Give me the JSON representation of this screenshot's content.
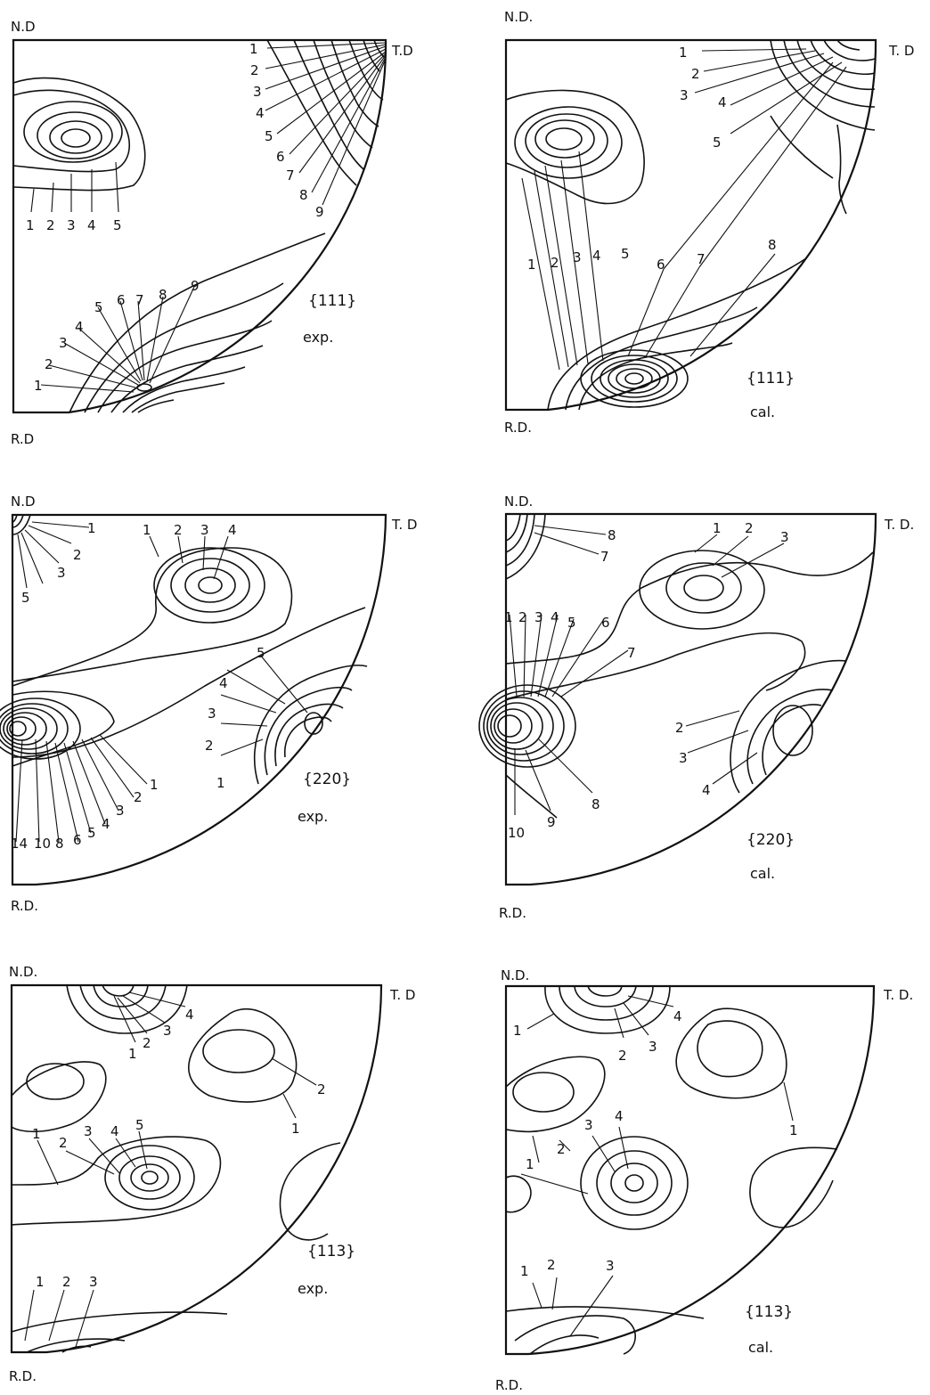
{
  "axes": {
    "nd": "N.D",
    "nd2": "N.D.",
    "td": "T.D",
    "td2": "T. D",
    "td3": "T. D.",
    "rd": "R.D",
    "rd2": "R.D."
  },
  "panels": {
    "p111_exp": {
      "plane": "{111}",
      "kind": "exp.",
      "td_labels": [
        "1",
        "2",
        "3",
        "4",
        "5",
        "6",
        "7",
        "8",
        "9"
      ],
      "mid_labels": [
        "1",
        "2",
        "3",
        "4",
        "5"
      ],
      "bottom_labels": [
        "1",
        "2",
        "3",
        "4",
        "5",
        "6",
        "7",
        "8",
        "9"
      ]
    },
    "p111_cal": {
      "plane": "{111}",
      "kind": "cal.",
      "td_labels": [
        "1",
        "2",
        "3",
        "4",
        "5"
      ],
      "bottom_labels": [
        "1",
        "2",
        "3",
        "4",
        "5",
        "6",
        "7",
        "8"
      ]
    },
    "p220_exp": {
      "plane": "{220}",
      "kind": "exp.",
      "nd_labels": [
        "1",
        "2",
        "3",
        "5"
      ],
      "top_labels": [
        "1",
        "2",
        "3",
        "4"
      ],
      "right_labels": [
        "5",
        "4",
        "3",
        "2",
        "1"
      ],
      "rd_side_labels": [
        "1",
        "2",
        "3",
        "4",
        "5",
        "6",
        "8",
        "10",
        "14"
      ]
    },
    "p220_cal": {
      "plane": "{220}",
      "kind": "cal.",
      "nd_labels": [
        "8",
        "7"
      ],
      "left_labels": [
        "1",
        "2",
        "3",
        "4",
        "5",
        "6",
        "7"
      ],
      "top_labels": [
        "1",
        "2",
        "3"
      ],
      "right_labels": [
        "2",
        "3",
        "4"
      ],
      "low_labels": [
        "10",
        "9",
        "8"
      ]
    },
    "p113_exp": {
      "plane": "{113}",
      "kind": "exp.",
      "top_labels": [
        "1",
        "2",
        "3",
        "4"
      ],
      "right_labels": [
        "2",
        "1"
      ],
      "mid_labels": [
        "1",
        "2",
        "3",
        "4",
        "5"
      ],
      "bottom_labels": [
        "1",
        "2",
        "3"
      ]
    },
    "p113_cal": {
      "plane": "{113}",
      "kind": "cal.",
      "top_labels": [
        "1",
        "2",
        "3",
        "4"
      ],
      "right_labels": [
        "1"
      ],
      "mid_labels": [
        "1",
        "2",
        "3",
        "4"
      ],
      "bottom_labels": [
        "1",
        "2",
        "3"
      ]
    }
  }
}
